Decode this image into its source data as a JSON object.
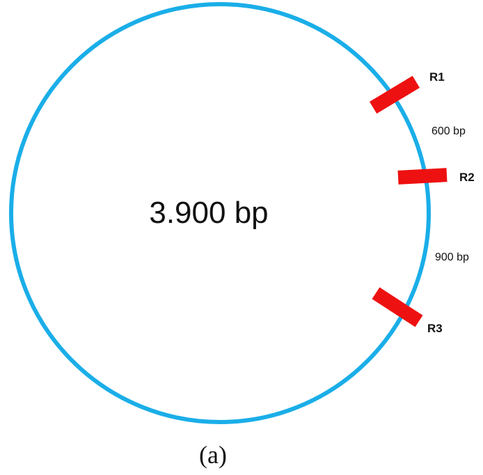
{
  "plasmid": {
    "size_label": "3.900 bp",
    "ring_color": "#1aaee8"
  },
  "sites": [
    {
      "label": "R1"
    },
    {
      "label": "R2"
    },
    {
      "label": "R3"
    }
  ],
  "site_color": "#ee1111",
  "segments": [
    {
      "label": "600 bp"
    },
    {
      "label": "900 bp"
    }
  ],
  "caption": "(a)"
}
